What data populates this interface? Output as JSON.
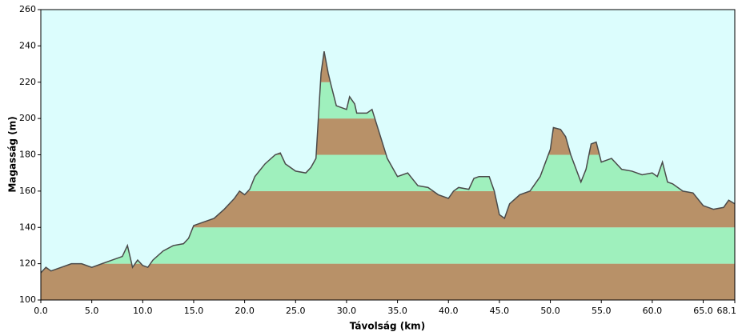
{
  "chart_data": {
    "type": "elevation-profile",
    "x_label": "Távolság  (km)",
    "y_label": "Magasság (m)",
    "x": [
      0,
      0.5,
      1,
      2,
      3,
      4,
      5,
      6,
      7,
      8,
      8.5,
      9,
      9.5,
      10,
      10.5,
      11,
      12,
      13,
      14,
      14.5,
      15,
      16,
      17,
      18,
      19,
      19.5,
      20,
      20.5,
      21,
      22,
      23,
      23.5,
      24,
      25,
      26,
      26.5,
      27,
      27.5,
      27.8,
      28.2,
      28.5,
      29,
      30,
      30.3,
      30.8,
      31,
      32,
      32.5,
      33,
      34,
      35,
      36,
      37,
      38,
      39,
      40,
      40.5,
      41,
      42,
      42.5,
      43,
      44,
      44.5,
      45,
      45.5,
      46,
      47,
      48,
      49,
      50,
      50.3,
      51,
      51.5,
      52,
      53,
      53.5,
      54,
      54.5,
      55,
      56,
      57,
      58,
      59,
      60,
      60.5,
      61,
      61.5,
      62,
      63,
      64,
      65,
      66,
      67,
      67.5,
      68.1
    ],
    "values": [
      115,
      118,
      116,
      118,
      120,
      120,
      118,
      120,
      122,
      124,
      130,
      118,
      122,
      119,
      118,
      122,
      127,
      130,
      131,
      134,
      141,
      143,
      145,
      150,
      156,
      160,
      158,
      161,
      168,
      175,
      180,
      181,
      175,
      171,
      170,
      173,
      178,
      225,
      237,
      225,
      218,
      207,
      205,
      212,
      208,
      203,
      203,
      205,
      196,
      178,
      168,
      170,
      163,
      162,
      158,
      156,
      160,
      162,
      161,
      167,
      168,
      168,
      160,
      147,
      145,
      153,
      158,
      160,
      168,
      183,
      195,
      194,
      190,
      180,
      165,
      172,
      186,
      187,
      176,
      178,
      172,
      171,
      169,
      170,
      168,
      176,
      165,
      164,
      160,
      159,
      152,
      150,
      151,
      155,
      153
    ],
    "xlim": [
      0,
      68.1
    ],
    "ylim": [
      100,
      260
    ],
    "xticks": [
      {
        "value": 0,
        "label": "0.0"
      },
      {
        "value": 5,
        "label": "5.0"
      },
      {
        "value": 10,
        "label": "10.0"
      },
      {
        "value": 15,
        "label": "15.0"
      },
      {
        "value": 20,
        "label": "20.0"
      },
      {
        "value": 25,
        "label": "25.0"
      },
      {
        "value": 30,
        "label": "30.0"
      },
      {
        "value": 35,
        "label": "35.0"
      },
      {
        "value": 40,
        "label": "40.0"
      },
      {
        "value": 45,
        "label": "45.0"
      },
      {
        "value": 50,
        "label": "50.0"
      },
      {
        "value": 55,
        "label": "55.0"
      },
      {
        "value": 60,
        "label": "60.0"
      },
      {
        "value": 65,
        "label": "65.0"
      },
      68.1
    ],
    "yticks": [
      100,
      120,
      140,
      160,
      180,
      200,
      220,
      240,
      260
    ],
    "band_colors": [
      "#b89168",
      "#9ff0bd"
    ],
    "line_color": "#4a4a4a",
    "background": "#dcfdfd"
  }
}
